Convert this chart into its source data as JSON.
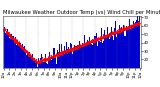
{
  "title": "Milwaukee Weather Outdoor Temp (vs) Wind Chill per Minute (Last 24 Hours)",
  "bg_color": "#ffffff",
  "plot_bg_color": "#ffffff",
  "bar_color": "#0000cc",
  "line_color": "#ff0000",
  "grid_color": "#888888",
  "ymin": 10,
  "ymax": 72,
  "yticks": [
    20,
    30,
    40,
    50,
    60,
    70
  ],
  "num_points": 1440,
  "title_fontsize": 3.8,
  "tick_fontsize": 2.8,
  "figwidth": 1.6,
  "figheight": 0.87,
  "dpi": 100
}
